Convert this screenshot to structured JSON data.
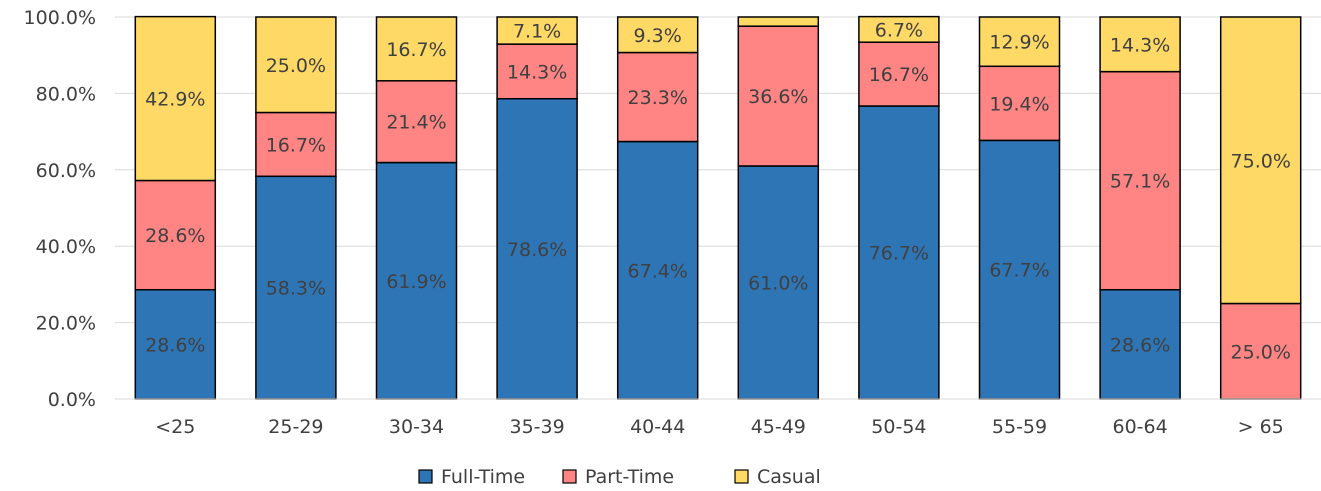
{
  "chart_data": {
    "type": "bar",
    "stacked": true,
    "orientation": "vertical",
    "categories": [
      "<25",
      "25-29",
      "30-34",
      "35-39",
      "40-44",
      "45-49",
      "50-54",
      "55-59",
      "60-64",
      "> 65"
    ],
    "series": [
      {
        "name": "Full-Time",
        "color": "#2e75b6",
        "values": [
          28.6,
          58.3,
          61.9,
          78.6,
          67.4,
          61.0,
          76.7,
          67.7,
          28.6,
          0.0
        ],
        "labels": [
          "28.6%",
          "58.3%",
          "61.9%",
          "78.6%",
          "67.4%",
          "61.0%",
          "76.7%",
          "67.7%",
          "28.6%",
          ""
        ]
      },
      {
        "name": "Part-Time",
        "color": "#ff8585",
        "values": [
          28.6,
          16.7,
          21.4,
          14.3,
          23.3,
          36.6,
          16.7,
          19.4,
          57.1,
          25.0
        ],
        "labels": [
          "28.6%",
          "16.7%",
          "21.4%",
          "14.3%",
          "23.3%",
          "36.6%",
          "16.7%",
          "19.4%",
          "57.1%",
          "25.0%"
        ]
      },
      {
        "name": "Casual",
        "color": "#ffd966",
        "values": [
          42.9,
          25.0,
          16.7,
          7.1,
          9.3,
          2.4,
          6.7,
          12.9,
          14.3,
          75.0
        ],
        "labels": [
          "42.9%",
          "25.0%",
          "16.7%",
          "7.1%",
          "9.3%",
          "",
          "6.7%",
          "12.9%",
          "14.3%",
          "75.0%"
        ]
      }
    ],
    "y_ticks": [
      "0.0%",
      "20.0%",
      "40.0%",
      "60.0%",
      "80.0%",
      "100.0%"
    ],
    "ylim": [
      0,
      100
    ],
    "grid": true,
    "legend_position": "bottom-center"
  }
}
